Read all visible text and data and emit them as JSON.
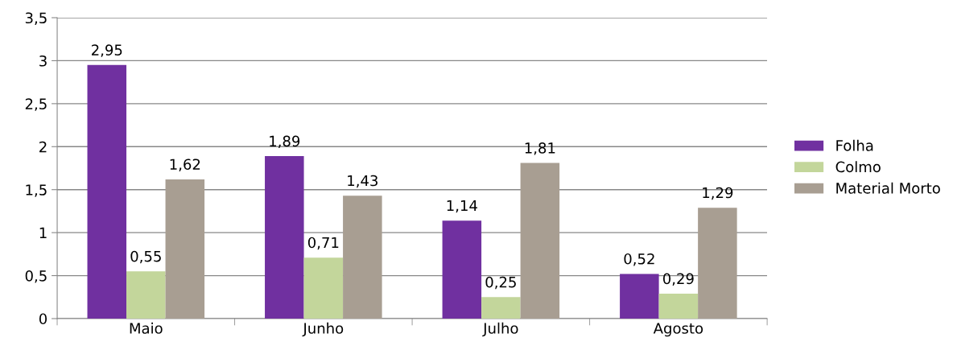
{
  "chart_data": {
    "type": "bar",
    "categories": [
      "Maio",
      "Junho",
      "Julho",
      "Agosto"
    ],
    "series": [
      {
        "name": "Folha",
        "color": "#7030a0",
        "values": [
          2.95,
          1.89,
          1.14,
          0.52
        ],
        "value_labels": [
          "2,95",
          "1,89",
          "1,14",
          "0,52"
        ]
      },
      {
        "name": "Colmo",
        "color": "#c3d69b",
        "values": [
          0.55,
          0.71,
          0.25,
          0.29
        ],
        "value_labels": [
          "0,55",
          "0,71",
          "0,25",
          "0,29"
        ]
      },
      {
        "name": "Material Morto",
        "color": "#a89e92",
        "values": [
          1.62,
          1.43,
          1.81,
          1.29
        ],
        "value_labels": [
          "1,62",
          "1,43",
          "1,81",
          "1,29"
        ]
      }
    ],
    "ylim": [
      0,
      3.5
    ],
    "yticks": [
      0,
      {
        "value": 0.5,
        "label": "0,5"
      },
      1,
      {
        "value": 1.5,
        "label": "1,5"
      },
      2,
      {
        "value": 2.5,
        "label": "2,5"
      },
      3,
      {
        "value": 3.5,
        "label": "3,5"
      }
    ],
    "grid": "y",
    "legend": "right"
  }
}
